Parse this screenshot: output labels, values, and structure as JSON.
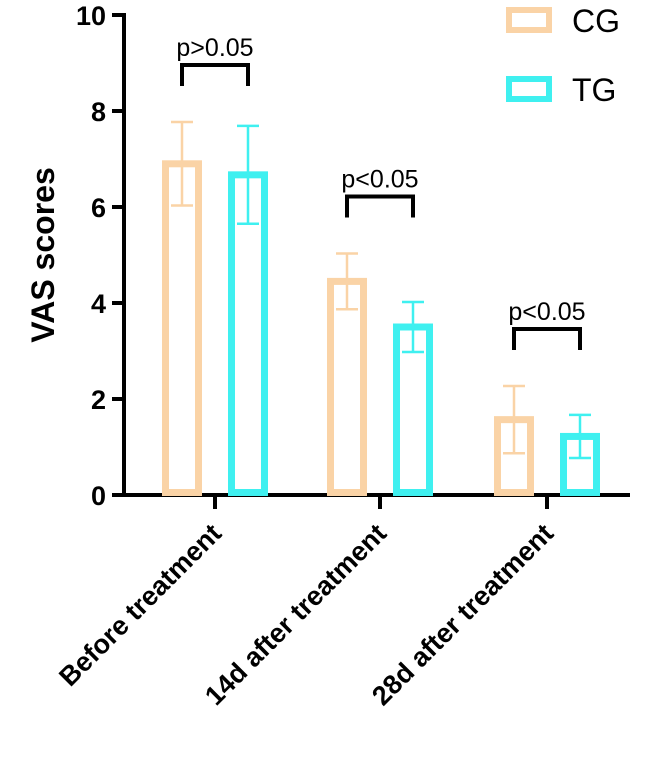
{
  "chart_data": {
    "type": "bar",
    "title": "",
    "xlabel": "",
    "ylabel": "VAS scores",
    "ylim": [
      0,
      10
    ],
    "yticks": [
      "0",
      "2",
      "4",
      "6",
      "8",
      "10"
    ],
    "categories": [
      "Before treatment",
      "14d after treatment",
      "28d after treatment"
    ],
    "series": [
      {
        "name": "CG",
        "color": "#FAD3A6",
        "values": [
          6.9,
          4.45,
          1.57
        ],
        "error": [
          0.87,
          0.58,
          0.7
        ]
      },
      {
        "name": "TG",
        "color": "#3FF0F0",
        "values": [
          6.67,
          3.5,
          1.22
        ],
        "error": [
          1.02,
          0.52,
          0.45
        ]
      }
    ],
    "legend": {
      "position": "top-right",
      "entries": [
        "CG",
        "TG"
      ]
    },
    "annotations": [
      {
        "category": "Before treatment",
        "text": "p>0.05"
      },
      {
        "category": "14d after treatment",
        "text": "p<0.05"
      },
      {
        "category": "28d after treatment",
        "text": "p<0.05"
      }
    ]
  }
}
